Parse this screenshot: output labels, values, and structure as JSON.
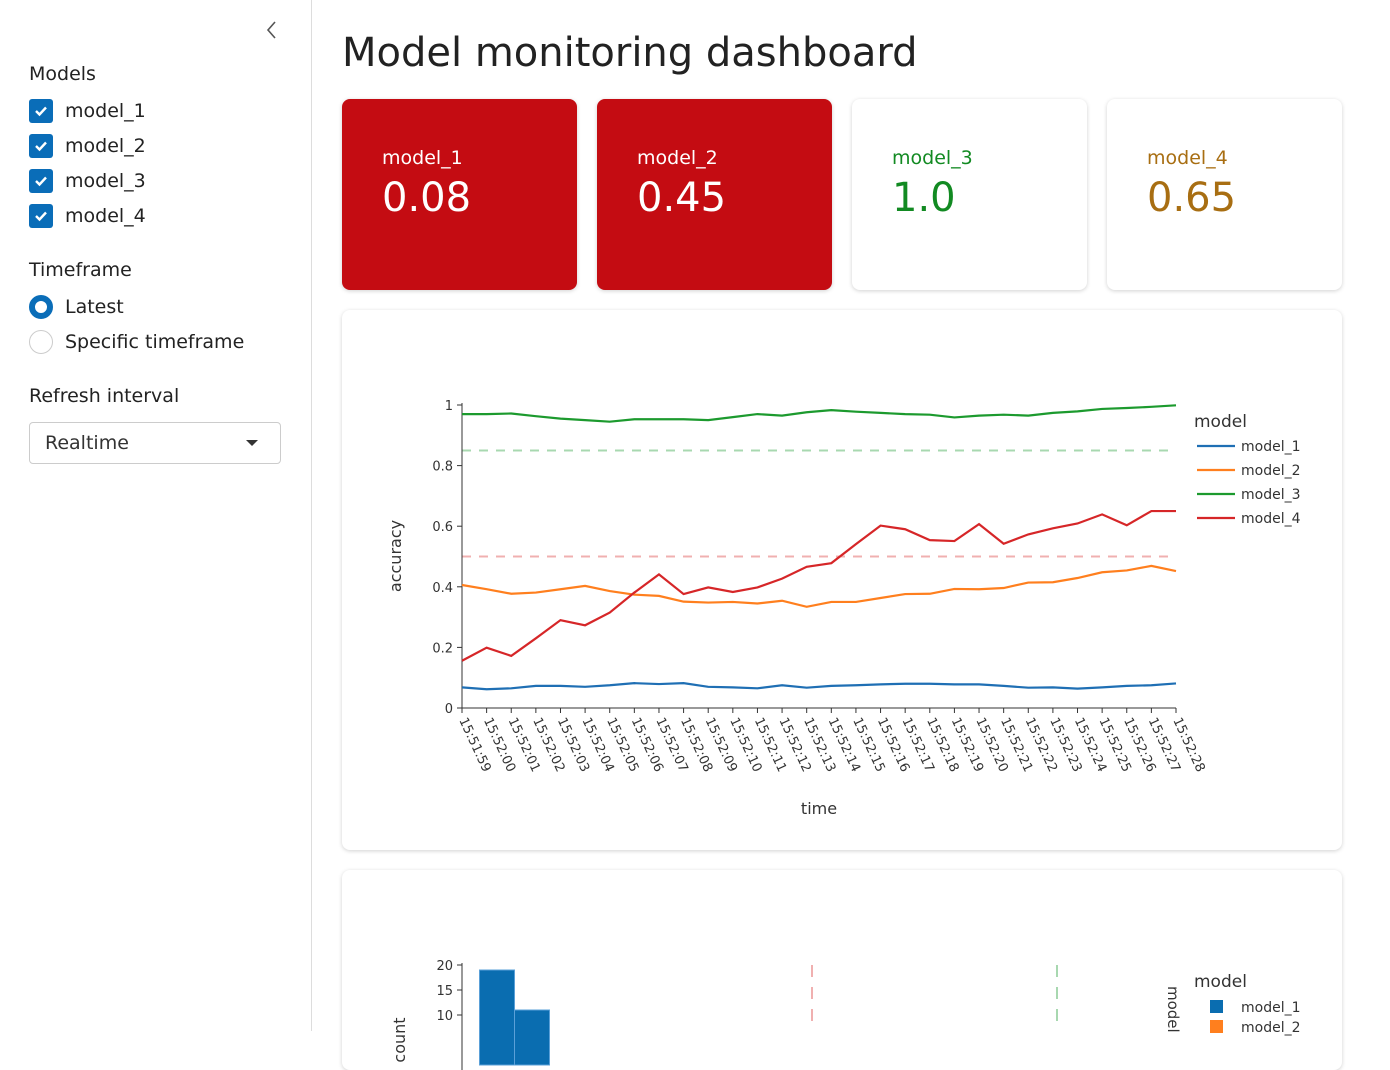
{
  "sidebar": {
    "models_title": "Models",
    "models": [
      {
        "label": "model_1",
        "checked": true
      },
      {
        "label": "model_2",
        "checked": true
      },
      {
        "label": "model_3",
        "checked": true
      },
      {
        "label": "model_4",
        "checked": true
      }
    ],
    "timeframe_title": "Timeframe",
    "timeframe_options": [
      {
        "label": "Latest",
        "selected": true
      },
      {
        "label": "Specific timeframe",
        "selected": false
      }
    ],
    "refresh_title": "Refresh interval",
    "refresh_value": "Realtime"
  },
  "header": {
    "title": "Model monitoring dashboard"
  },
  "kpis": [
    {
      "label": "model_1",
      "value": "0.08",
      "bg": "#c40c12",
      "fg": "#ffffff"
    },
    {
      "label": "model_2",
      "value": "0.45",
      "bg": "#c40c12",
      "fg": "#ffffff"
    },
    {
      "label": "model_3",
      "value": "1.0",
      "bg": "#ffffff",
      "fg": "#128a22"
    },
    {
      "label": "model_4",
      "value": "0.65",
      "bg": "#ffffff",
      "fg": "#a86e12"
    }
  ],
  "chart_data": [
    {
      "type": "line",
      "xlabel": "time",
      "ylabel": "accuracy",
      "ylim": [
        0,
        1
      ],
      "yticks": [
        "0",
        "0.2",
        "0.4",
        "0.6",
        "0.8",
        "1"
      ],
      "x": [
        "15:51:59",
        "15:52:00",
        "15:52:01",
        "15:52:02",
        "15:52:03",
        "15:52:04",
        "15:52:05",
        "15:52:06",
        "15:52:07",
        "15:52:08",
        "15:52:09",
        "15:52:10",
        "15:52:11",
        "15:52:12",
        "15:52:13",
        "15:52:14",
        "15:52:15",
        "15:52:16",
        "15:52:17",
        "15:52:18",
        "15:52:19",
        "15:52:20",
        "15:52:21",
        "15:52:22",
        "15:52:23",
        "15:52:24",
        "15:52:25",
        "15:52:26",
        "15:52:27",
        "15:52:28"
      ],
      "legend_title": "model",
      "legend_position": "right",
      "grid": false,
      "series": [
        {
          "name": "model_1",
          "color": "#1f6fb4",
          "values": [
            0.068,
            0.062,
            0.065,
            0.073,
            0.073,
            0.07,
            0.075,
            0.082,
            0.079,
            0.082,
            0.07,
            0.068,
            0.065,
            0.075,
            0.067,
            0.073,
            0.075,
            0.078,
            0.08,
            0.08,
            0.078,
            0.078,
            0.073,
            0.067,
            0.068,
            0.064,
            0.068,
            0.073,
            0.075,
            0.081
          ]
        },
        {
          "name": "model_2",
          "color": "#ff7f1e",
          "values": [
            0.406,
            0.392,
            0.377,
            0.381,
            0.392,
            0.403,
            0.386,
            0.374,
            0.37,
            0.351,
            0.348,
            0.35,
            0.345,
            0.354,
            0.334,
            0.35,
            0.35,
            0.363,
            0.376,
            0.377,
            0.393,
            0.392,
            0.396,
            0.414,
            0.415,
            0.429,
            0.448,
            0.454,
            0.469,
            0.452
          ]
        },
        {
          "name": "model_3",
          "color": "#1c9a2e",
          "values": [
            0.97,
            0.97,
            0.972,
            0.963,
            0.955,
            0.95,
            0.945,
            0.953,
            0.953,
            0.953,
            0.95,
            0.96,
            0.97,
            0.965,
            0.976,
            0.983,
            0.978,
            0.974,
            0.97,
            0.968,
            0.959,
            0.965,
            0.968,
            0.965,
            0.974,
            0.979,
            0.987,
            0.99,
            0.994,
            0.999
          ]
        },
        {
          "name": "model_4",
          "color": "#d62628",
          "values": [
            0.156,
            0.199,
            0.172,
            0.23,
            0.29,
            0.273,
            0.315,
            0.381,
            0.441,
            0.376,
            0.398,
            0.383,
            0.398,
            0.427,
            0.466,
            0.478,
            0.541,
            0.602,
            0.59,
            0.554,
            0.551,
            0.607,
            0.542,
            0.573,
            0.593,
            0.609,
            0.639,
            0.603,
            0.65,
            0.65
          ]
        }
      ],
      "thresholds": [
        {
          "value": 0.85,
          "color": "#a8d8b0"
        },
        {
          "value": 0.5,
          "color": "#f0b0b0"
        }
      ]
    },
    {
      "type": "bar",
      "ylabel": "count",
      "yticks": [
        "10",
        "15",
        "20"
      ],
      "legend_title": "model",
      "side_label": "model",
      "series": [
        {
          "name": "model_1",
          "color": "#0a6db0",
          "bins": [
            [
              0.025,
              0.075,
              19
            ],
            [
              0.075,
              0.125,
              11
            ]
          ]
        },
        {
          "name": "model_2",
          "color": "#ff7f1e",
          "bins": []
        }
      ],
      "thresholds": [
        {
          "value": 0.5,
          "color": "#f0b0b0"
        },
        {
          "value": 0.85,
          "color": "#a8d8b0"
        }
      ]
    }
  ]
}
